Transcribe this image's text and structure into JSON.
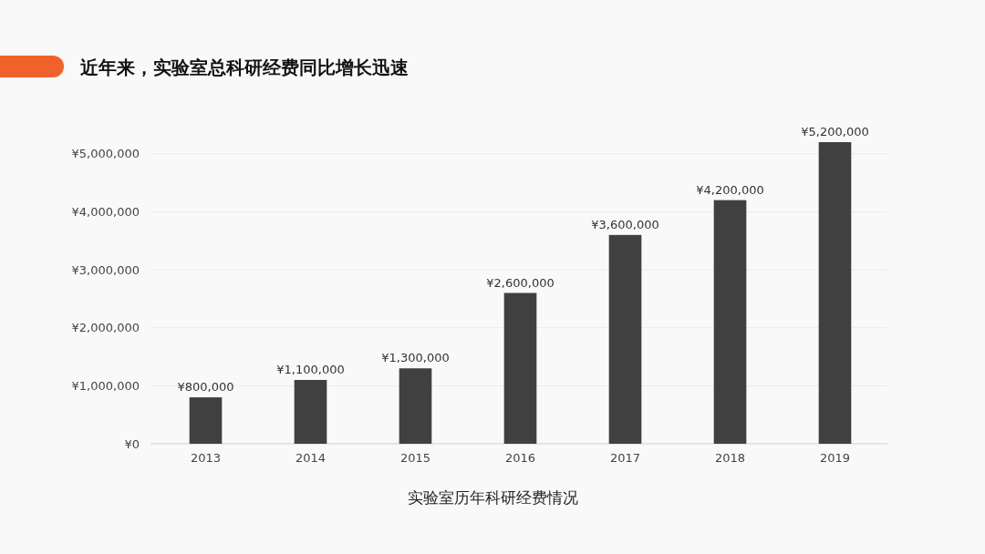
{
  "chart_data": {
    "type": "bar",
    "title": "近年来，实验室总科研经费同比增长迅速",
    "xlabel": "实验室历年科研经费情况",
    "categories": [
      "2013",
      "2014",
      "2015",
      "2016",
      "2017",
      "2018",
      "2019"
    ],
    "values": [
      800000,
      1100000,
      1300000,
      2600000,
      3600000,
      4200000,
      5200000
    ],
    "value_labels": [
      "¥800,000",
      "¥1,100,000",
      "¥1,300,000",
      "¥2,600,000",
      "¥3,600,000",
      "¥4,200,000",
      "¥5,200,000"
    ],
    "color": "#404040",
    "ylim": [
      0,
      5200000
    ],
    "yticks": [
      {
        "value": 0,
        "label": "¥0"
      },
      {
        "value": 1000000,
        "label": "¥1,000,000"
      },
      {
        "value": 2000000,
        "label": "¥2,000,000"
      },
      {
        "value": 3000000,
        "label": "¥3,000,000"
      },
      {
        "value": 4000000,
        "label": "¥4,000,000"
      },
      {
        "value": 5000000,
        "label": "¥5,000,000"
      }
    ],
    "grid": "y"
  }
}
